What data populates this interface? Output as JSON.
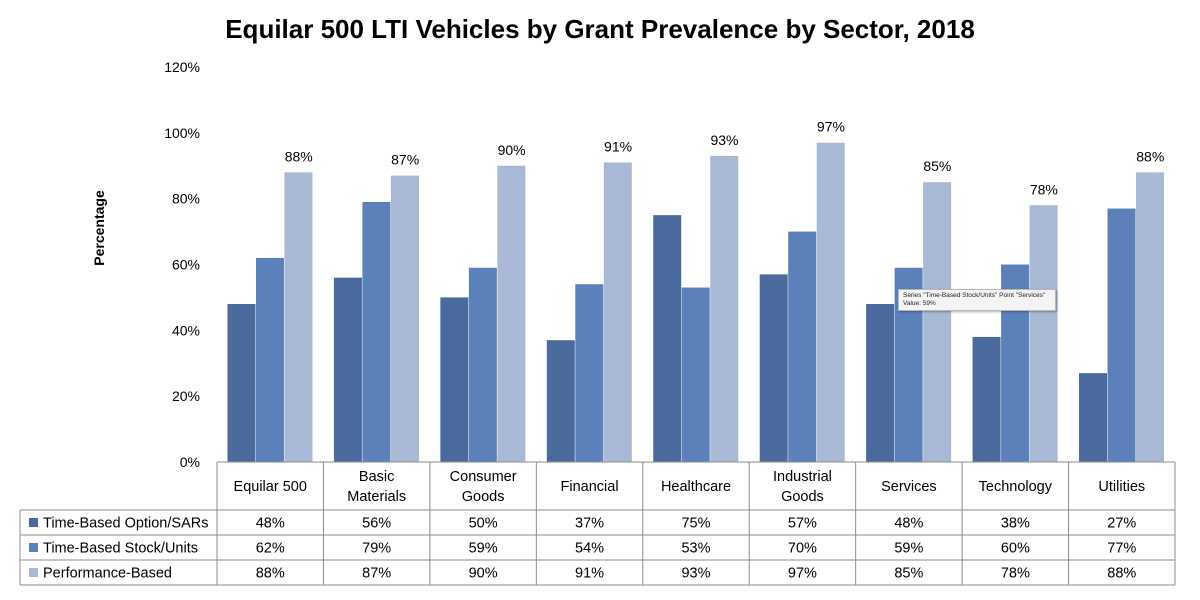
{
  "chart_data": {
    "type": "bar",
    "title": "Equilar 500 LTI Vehicles by Grant Prevalence by Sector, 2018",
    "ylabel": "Percentage",
    "xlabel": "",
    "ylim": [
      0,
      120
    ],
    "yticks": [
      "0%",
      "20%",
      "40%",
      "60%",
      "80%",
      "100%",
      "120%"
    ],
    "ytick_values": [
      0,
      20,
      40,
      60,
      80,
      100,
      120
    ],
    "categories": [
      [
        "Equilar 500"
      ],
      [
        "Basic",
        "Materials"
      ],
      [
        "Consumer",
        "Goods"
      ],
      [
        "Financial"
      ],
      [
        "Healthcare"
      ],
      [
        "Industrial",
        "Goods"
      ],
      [
        "Services"
      ],
      [
        "Technology"
      ],
      [
        "Utilities"
      ]
    ],
    "grid": false,
    "legend": "data-table",
    "series": [
      {
        "name": "Time-Based Option/SARs",
        "color": "#4a6a9d",
        "values": [
          48,
          56,
          50,
          37,
          75,
          57,
          48,
          38,
          27
        ],
        "labels": [
          "48%",
          "56%",
          "50%",
          "37%",
          "75%",
          "57%",
          "48%",
          "38%",
          "27%"
        ]
      },
      {
        "name": "Time-Based Stock/Units",
        "color": "#5b80ba",
        "values": [
          62,
          79,
          59,
          54,
          53,
          70,
          59,
          60,
          77
        ],
        "labels": [
          "62%",
          "79%",
          "59%",
          "54%",
          "53%",
          "70%",
          "59%",
          "60%",
          "77%"
        ]
      },
      {
        "name": "Performance-Based",
        "color": "#a9b8d5",
        "values": [
          88,
          87,
          90,
          91,
          93,
          97,
          85,
          78,
          88
        ],
        "labels": [
          "88%",
          "87%",
          "90%",
          "91%",
          "93%",
          "97%",
          "85%",
          "78%",
          "88%"
        ]
      }
    ],
    "data_labels_series": 2
  },
  "tooltip": {
    "line1": "Series \"Time-Based Stock/Units\" Point \"Services\"",
    "line2": "Value: 59%"
  }
}
